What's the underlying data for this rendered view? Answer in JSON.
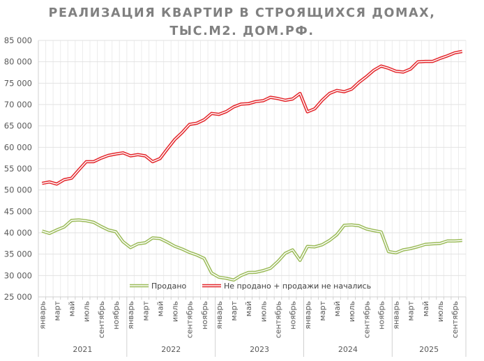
{
  "chart_data": {
    "type": "line",
    "title_lines": [
      "РЕАЛИЗАЦИЯ КВАРТИР В СТРОЯЩИХСЯ ДОМАХ,",
      "ТЫС.М2. ДОМ.РФ."
    ],
    "xlabel": "",
    "ylabel": "",
    "ylim": [
      25000,
      85000
    ],
    "yticks": [
      25000,
      30000,
      35000,
      40000,
      45000,
      50000,
      55000,
      60000,
      65000,
      70000,
      75000,
      80000,
      85000
    ],
    "ytick_labels": [
      "25 000",
      "30 000",
      "35 000",
      "40 000",
      "45 000",
      "50 000",
      "55 000",
      "60 000",
      "65 000",
      "70 000",
      "75 000",
      "80 000",
      "85 000"
    ],
    "grid": true,
    "legend_position": "bottom-inside",
    "years": [
      "2021",
      "2022",
      "2023",
      "2024",
      "2025"
    ],
    "months_per_year": [
      12,
      12,
      12,
      12,
      10
    ],
    "month_labels": [
      "январь",
      "",
      "март",
      "",
      "май",
      "",
      "июль",
      "",
      "сентябрь",
      "",
      "ноябрь",
      ""
    ],
    "series": [
      {
        "name": "Продано",
        "color": "#9bbb59",
        "values": [
          40400,
          39850,
          40650,
          41350,
          42880,
          43000,
          42800,
          42450,
          41500,
          40650,
          40250,
          37900,
          36550,
          37400,
          37650,
          38800,
          38650,
          37800,
          36850,
          36200,
          35400,
          34800,
          34000,
          30600,
          29600,
          29350,
          28950,
          30000,
          30700,
          30760,
          31150,
          31700,
          33300,
          35200,
          36000,
          33550,
          36800,
          36700,
          37200,
          38200,
          39550,
          41750,
          41850,
          41650,
          40900,
          40500,
          40200,
          35600,
          35300,
          36000,
          36300,
          36750,
          37300,
          37400,
          37500,
          38100,
          38100,
          38200
        ]
      },
      {
        "name": "Не продано + продажи не начались",
        "color": "#e3262b",
        "values": [
          51560,
          51890,
          51400,
          52430,
          52760,
          54720,
          56630,
          56630,
          57450,
          58100,
          58430,
          58700,
          58000,
          58270,
          58000,
          56630,
          57340,
          59630,
          61800,
          63450,
          65360,
          65630,
          66450,
          67920,
          67700,
          68360,
          69450,
          70100,
          70200,
          70700,
          70900,
          71700,
          71400,
          71000,
          71300,
          72600,
          68300,
          69000,
          71000,
          72600,
          73300,
          73000,
          73600,
          75200,
          76500,
          78000,
          79000,
          78500,
          77800,
          77600,
          78300,
          80000,
          80100,
          80100,
          80800,
          81400,
          82100,
          82400
        ]
      }
    ]
  }
}
